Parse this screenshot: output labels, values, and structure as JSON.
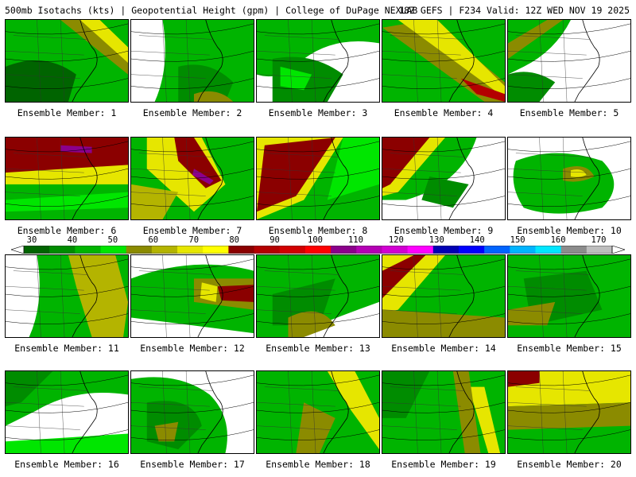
{
  "header": {
    "title_left": "500mb Isotachs (kts) | Geopotential Height (gpm) | College of DuPage NEXLAB",
    "title_right": "18Z GEFS | F234 Valid: 12Z WED NOV 19 2025"
  },
  "colorbar": {
    "ticks": [
      "30",
      "40",
      "50",
      "60",
      "70",
      "80",
      "90",
      "100",
      "110",
      "120",
      "130",
      "140",
      "150",
      "160",
      "170"
    ],
    "colors": [
      "#006400",
      "#008c00",
      "#00b400",
      "#00e600",
      "#8b8b00",
      "#b4b400",
      "#e6e600",
      "#ffff00",
      "#8b0000",
      "#b40000",
      "#d20000",
      "#ff0000",
      "#8b008b",
      "#b400b4",
      "#d200d2",
      "#ff00ff",
      "#0000b4",
      "#0000ff",
      "#0064ff",
      "#00b4ff",
      "#00e6ff",
      "#8c8c8c",
      "#bebebe"
    ]
  },
  "panels": [
    {
      "label": "Ensemble Member: 1",
      "pattern": "g1"
    },
    {
      "label": "Ensemble Member: 2",
      "pattern": "g2"
    },
    {
      "label": "Ensemble Member: 3",
      "pattern": "g3"
    },
    {
      "label": "Ensemble Member: 4",
      "pattern": "g4"
    },
    {
      "label": "Ensemble Member: 5",
      "pattern": "g5"
    },
    {
      "label": "Ensemble Member: 6",
      "pattern": "r1"
    },
    {
      "label": "Ensemble Member: 7",
      "pattern": "r2"
    },
    {
      "label": "Ensemble Member: 8",
      "pattern": "r3"
    },
    {
      "label": "Ensemble Member: 9",
      "pattern": "r4"
    },
    {
      "label": "Ensemble Member: 10",
      "pattern": "g6"
    },
    {
      "label": "Ensemble Member: 11",
      "pattern": "y1"
    },
    {
      "label": "Ensemble Member: 12",
      "pattern": "y2"
    },
    {
      "label": "Ensemble Member: 13",
      "pattern": "g7"
    },
    {
      "label": "Ensemble Member: 14",
      "pattern": "y3"
    },
    {
      "label": "Ensemble Member: 15",
      "pattern": "g8"
    },
    {
      "label": "Ensemble Member: 16",
      "pattern": "g9"
    },
    {
      "label": "Ensemble Member: 17",
      "pattern": "g10"
    },
    {
      "label": "Ensemble Member: 18",
      "pattern": "y4"
    },
    {
      "label": "Ensemble Member: 19",
      "pattern": "g11"
    },
    {
      "label": "Ensemble Member: 20",
      "pattern": "y5"
    }
  ]
}
